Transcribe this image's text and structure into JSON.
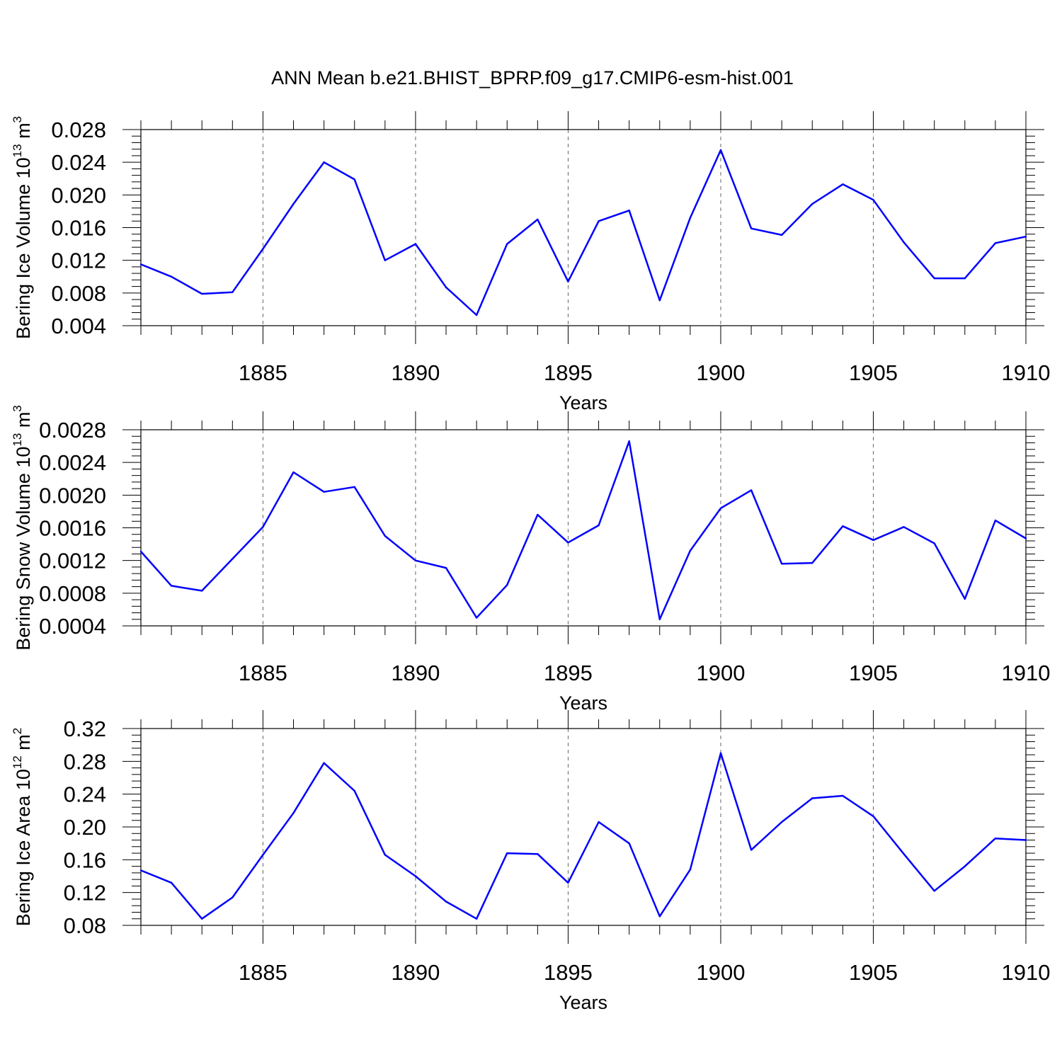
{
  "title": "ANN Mean b.e21.BHIST_BPRP.f09_g17.CMIP6-esm-hist.001",
  "line_color": "#0000ff",
  "chart_data": [
    {
      "type": "line",
      "xlabel": "Years",
      "ylabel": {
        "text": "Bering Ice Volume 10",
        "exp": "13",
        "unit": " m",
        "unit_exp": "3"
      },
      "xlim": [
        1881,
        1910
      ],
      "ylim": [
        0.004,
        0.028
      ],
      "xticks": [
        "1885",
        "1890",
        "1895",
        "1900",
        "1905",
        "1910"
      ],
      "yticks": [
        "0.004",
        "0.008",
        "0.012",
        "0.016",
        "0.020",
        "0.024",
        "0.028"
      ],
      "x": [
        1881,
        1882,
        1883,
        1884,
        1885,
        1886,
        1887,
        1888,
        1889,
        1890,
        1891,
        1892,
        1893,
        1894,
        1895,
        1896,
        1897,
        1898,
        1899,
        1900,
        1901,
        1902,
        1903,
        1904,
        1905,
        1906,
        1907,
        1908,
        1909,
        1910
      ],
      "values": [
        0.0115,
        0.01,
        0.0079,
        0.0081,
        0.0134,
        0.0189,
        0.024,
        0.0219,
        0.012,
        0.014,
        0.0087,
        0.0053,
        0.014,
        0.017,
        0.0094,
        0.0168,
        0.0181,
        0.0071,
        0.0172,
        0.0255,
        0.0159,
        0.0151,
        0.0189,
        0.0213,
        0.0194,
        0.0142,
        0.0098,
        0.0098,
        0.0141,
        0.0149
      ]
    },
    {
      "type": "line",
      "xlabel": "Years",
      "ylabel": {
        "text": "Bering Snow Volume 10",
        "exp": "13",
        "unit": " m",
        "unit_exp": "3"
      },
      "xlim": [
        1881,
        1910
      ],
      "ylim": [
        0.0004,
        0.0028
      ],
      "xticks": [
        "1885",
        "1890",
        "1895",
        "1900",
        "1905",
        "1910"
      ],
      "yticks": [
        "0.0004",
        "0.0008",
        "0.0012",
        "0.0016",
        "0.0020",
        "0.0024",
        "0.0028"
      ],
      "x": [
        1881,
        1882,
        1883,
        1884,
        1885,
        1886,
        1887,
        1888,
        1889,
        1890,
        1891,
        1892,
        1893,
        1894,
        1895,
        1896,
        1897,
        1898,
        1899,
        1900,
        1901,
        1902,
        1903,
        1904,
        1905,
        1906,
        1907,
        1908,
        1909,
        1910
      ],
      "values": [
        0.00131,
        0.00089,
        0.00083,
        0.00122,
        0.00161,
        0.00228,
        0.00204,
        0.0021,
        0.0015,
        0.0012,
        0.00111,
        0.0005,
        0.0009,
        0.00176,
        0.00142,
        0.00163,
        0.00266,
        0.00048,
        0.00132,
        0.00184,
        0.00206,
        0.00116,
        0.00117,
        0.00162,
        0.00145,
        0.00161,
        0.00141,
        0.00073,
        0.00169,
        0.00147
      ]
    },
    {
      "type": "line",
      "xlabel": "Years",
      "ylabel": {
        "text": "Bering Ice Area 10",
        "exp": "12",
        "unit": " m",
        "unit_exp": "2"
      },
      "xlim": [
        1881,
        1910
      ],
      "ylim": [
        0.08,
        0.32
      ],
      "xticks": [
        "1885",
        "1890",
        "1895",
        "1900",
        "1905",
        "1910"
      ],
      "yticks": [
        "0.08",
        "0.12",
        "0.16",
        "0.20",
        "0.24",
        "0.28",
        "0.32"
      ],
      "x": [
        1881,
        1882,
        1883,
        1884,
        1885,
        1886,
        1887,
        1888,
        1889,
        1890,
        1891,
        1892,
        1893,
        1894,
        1895,
        1896,
        1897,
        1898,
        1899,
        1900,
        1901,
        1902,
        1903,
        1904,
        1905,
        1906,
        1907,
        1908,
        1909,
        1910
      ],
      "values": [
        0.147,
        0.132,
        0.088,
        0.114,
        0.166,
        0.217,
        0.278,
        0.244,
        0.166,
        0.14,
        0.109,
        0.088,
        0.168,
        0.167,
        0.132,
        0.206,
        0.18,
        0.091,
        0.148,
        0.29,
        0.172,
        0.206,
        0.235,
        0.238,
        0.213,
        0.167,
        0.122,
        0.152,
        0.186,
        0.184
      ]
    }
  ]
}
